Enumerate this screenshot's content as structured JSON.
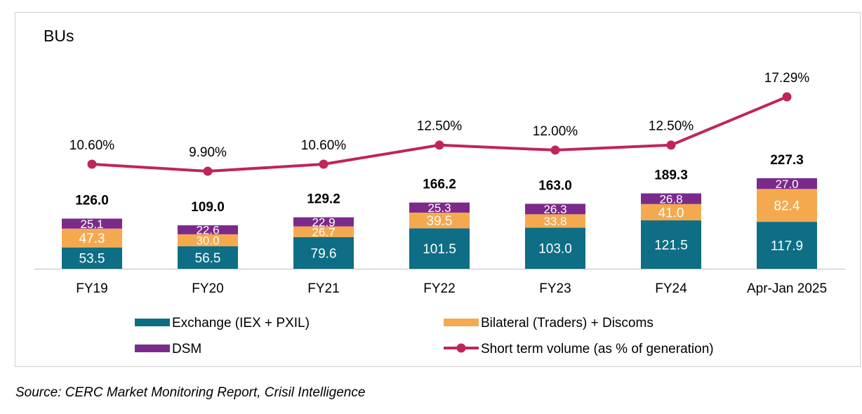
{
  "chart_data": {
    "type": "bar",
    "stacked": true,
    "ylabel": "BUs",
    "categories": [
      "FY19",
      "FY20",
      "FY21",
      "FY22",
      "FY23",
      "FY24",
      "Apr-Jan 2025"
    ],
    "series": [
      {
        "name": "Exchange (IEX + PXIL)",
        "color": "#0e6e85",
        "values": [
          53.5,
          56.5,
          79.6,
          101.5,
          103.0,
          121.5,
          117.9
        ],
        "labels": [
          "53.5",
          "56.5",
          "79.6",
          "101.5",
          "103.0",
          "121.5",
          "117.9"
        ]
      },
      {
        "name": "Bilateral (Traders) + Discoms",
        "color": "#f5a94f",
        "values": [
          47.3,
          30.0,
          26.7,
          39.5,
          33.8,
          41.0,
          82.4
        ],
        "labels": [
          "47.3",
          "30.0",
          "26.7",
          "39.5",
          "33.8",
          "41.0",
          "82.4"
        ]
      },
      {
        "name": "DSM",
        "color": "#7b2a8b",
        "values": [
          25.1,
          22.6,
          22.9,
          25.3,
          26.3,
          26.8,
          27.0
        ],
        "labels": [
          "25.1",
          "22.6",
          "22.9",
          "25.3",
          "26.3",
          "26.8",
          "27.0"
        ]
      }
    ],
    "totals": [
      "126.0",
      "109.0",
      "129.2",
      "166.2",
      "163.0",
      "189.3",
      "227.3"
    ],
    "line_series": {
      "name": "Short term volume (as % of generation)",
      "color": "#c0255a",
      "values": [
        10.6,
        9.9,
        10.6,
        12.5,
        12.0,
        12.5,
        17.29
      ],
      "labels": [
        "10.60%",
        "9.90%",
        "10.60%",
        "12.50%",
        "12.00%",
        "12.50%",
        "17.29%"
      ]
    },
    "legend": [
      {
        "name": "Exchange (IEX + PXIL)",
        "kind": "bar",
        "color": "#0e6e85"
      },
      {
        "name": "Bilateral (Traders) + Discoms",
        "kind": "bar",
        "color": "#f5a94f"
      },
      {
        "name": "DSM",
        "kind": "bar",
        "color": "#7b2a8b"
      },
      {
        "name": "Short term volume (as % of generation)",
        "kind": "line",
        "color": "#c0255a"
      }
    ],
    "legend_position": "bottom",
    "grid": false
  },
  "source": "Source: CERC Market Monitoring Report, Crisil Intelligence"
}
